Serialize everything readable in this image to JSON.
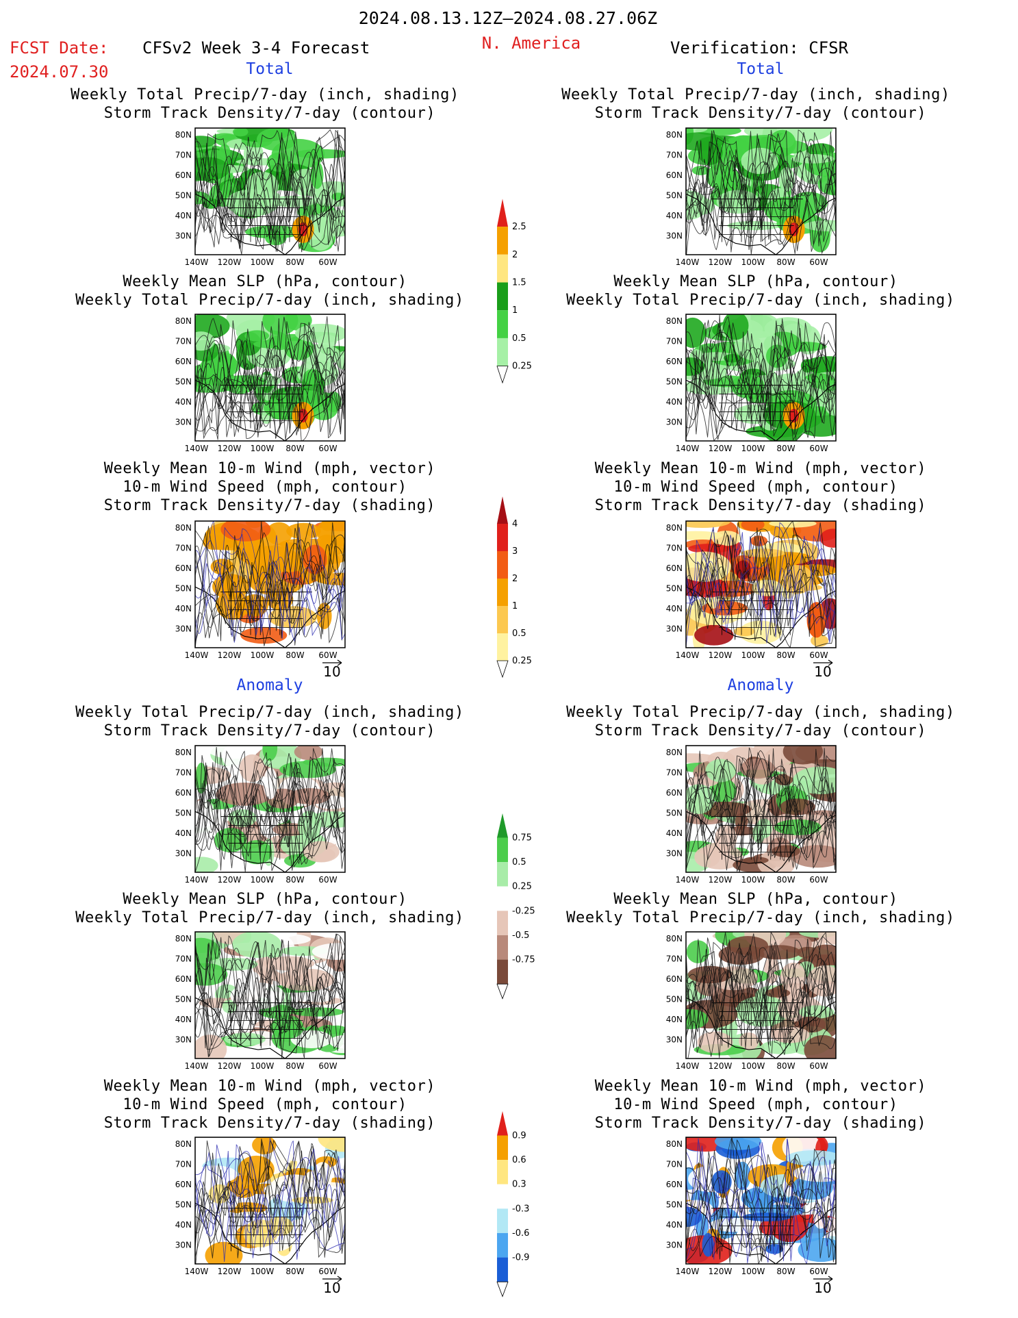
{
  "header": {
    "date_range": "2024.08.13.12Z–2024.08.27.06Z",
    "fcst_label": "FCST Date:",
    "fcst_date": "2024.07.30",
    "title": "CFSv2 Week 3-4 Forecast",
    "region": "N. America",
    "verification": "Verification: CFSR"
  },
  "sections": {
    "total": "Total",
    "anomaly": "Anomaly"
  },
  "panel_titles": {
    "p1_l1": "Weekly Total Precip/7-day (inch, shading)",
    "p1_l2": "Storm Track Density/7-day (contour)",
    "p2_l1": "Weekly Mean SLP (hPa, contour)",
    "p2_l2": "Weekly Total Precip/7-day (inch, shading)",
    "p3_l1": "Weekly Mean 10-m Wind (mph, vector)",
    "p3_l2": "10-m Wind Speed (mph, contour)",
    "p3_l3": "Storm Track Density/7-day (shading)"
  },
  "axes": {
    "lat": [
      "80N",
      "70N",
      "60N",
      "50N",
      "40N",
      "30N"
    ],
    "lon": [
      "140W",
      "120W",
      "100W",
      "80W",
      "60W"
    ]
  },
  "vector_ref": "10",
  "colorbars": {
    "total_precip": {
      "labels": [
        "2.5",
        "2",
        "1.5",
        "1",
        "0.5",
        "0.25"
      ],
      "colors": [
        "#e0201b",
        "#f5a000",
        "#ffe680",
        "#1a9e1a",
        "#44d144",
        "#a6f0a6"
      ]
    },
    "total_storm": {
      "labels": [
        "4",
        "3",
        "2",
        "1",
        "0.5",
        "0.25"
      ],
      "colors": [
        "#a50f15",
        "#e0201b",
        "#f25c14",
        "#f5a000",
        "#fcc850",
        "#fff2a0"
      ]
    },
    "anom_precip": {
      "labels": [
        "0.75",
        "0.5",
        "0.25",
        "-0.25",
        "-0.5",
        "-0.75"
      ],
      "colors": [
        "#1f9a2a",
        "#4ccd4c",
        "#a8eca8",
        "#ffffff",
        "#e6c6b8",
        "#b8897a",
        "#7a4a3a"
      ]
    },
    "anom_storm": {
      "labels": [
        "0.9",
        "0.6",
        "0.3",
        "-0.3",
        "-0.6",
        "-0.9"
      ],
      "colors": [
        "#e0201b",
        "#f5a000",
        "#ffe680",
        "#ffffff",
        "#b2e8f5",
        "#4ca6f0",
        "#1a5ed6"
      ]
    }
  }
}
